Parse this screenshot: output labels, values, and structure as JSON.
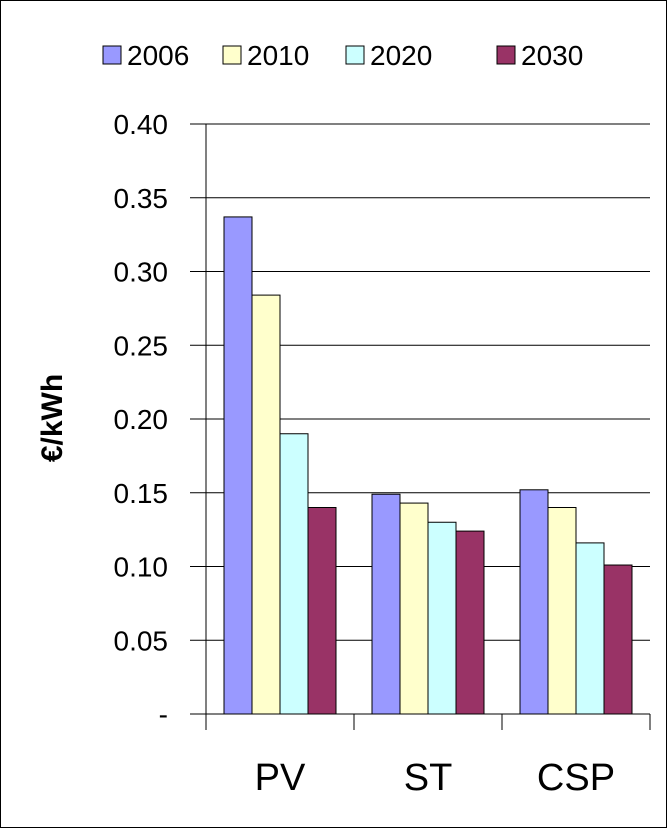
{
  "chart_data": {
    "type": "bar",
    "categories": [
      "PV",
      "ST",
      "CSP"
    ],
    "series": [
      {
        "name": "2006",
        "values": [
          0.337,
          0.149,
          0.152
        ],
        "color": "#9999ff"
      },
      {
        "name": "2010",
        "values": [
          0.284,
          0.143,
          0.14
        ],
        "color": "#ffffcc"
      },
      {
        "name": "2020",
        "values": [
          0.19,
          0.13,
          0.116
        ],
        "color": "#ccffff"
      },
      {
        "name": "2030",
        "values": [
          0.14,
          0.124,
          0.101
        ],
        "color": "#993366"
      }
    ],
    "title": "",
    "xlabel": "",
    "ylabel": "€/kWh",
    "ylim": [
      0,
      0.4
    ],
    "yticks": [
      0,
      0.05,
      0.1,
      0.15,
      0.2,
      0.25,
      0.3,
      0.35,
      0.4
    ],
    "ytick_labels": [
      "-",
      "0.05",
      "0.10",
      "0.15",
      "0.20",
      "0.25",
      "0.30",
      "0.35",
      "0.40"
    ],
    "grid": true,
    "legend": "top"
  }
}
